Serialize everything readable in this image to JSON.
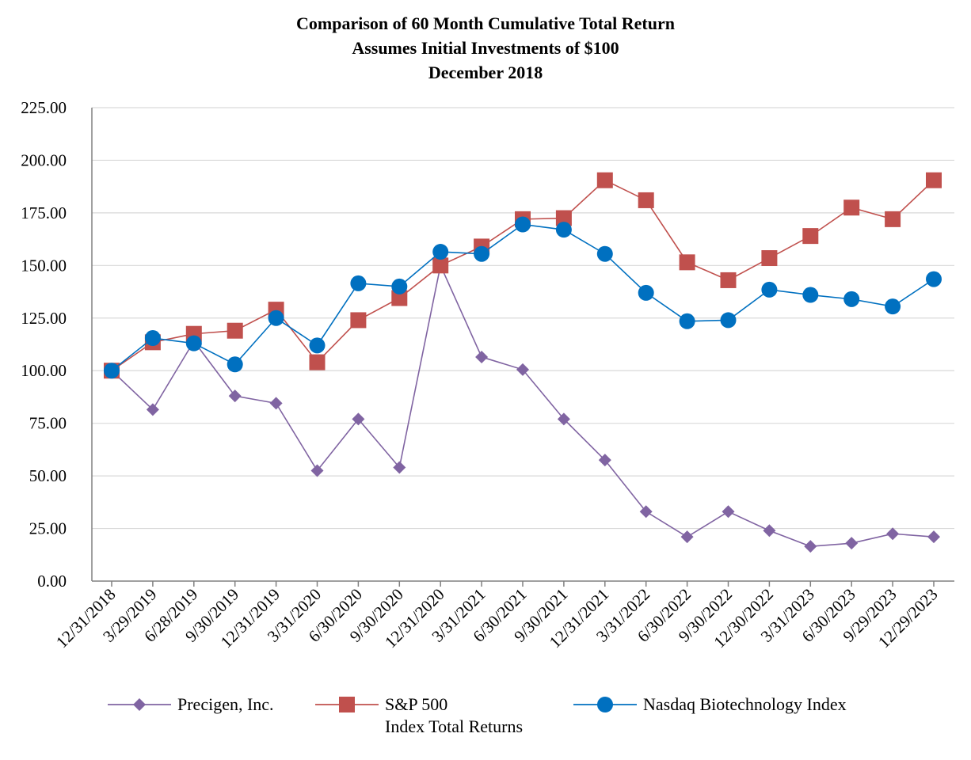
{
  "chart_data": {
    "type": "line",
    "title": "Comparison of 60 Month Cumulative Total Return",
    "subtitle_1": "Assumes Initial Investments of $100",
    "subtitle_2": "December 2018",
    "xlabel": "",
    "ylabel": "",
    "ylim": [
      0,
      225
    ],
    "yticks": [
      0,
      25,
      50,
      75,
      100,
      125,
      150,
      175,
      200,
      225
    ],
    "ytick_labels": [
      "0.00",
      "25.00",
      "50.00",
      "75.00",
      "100.00",
      "125.00",
      "150.00",
      "175.00",
      "200.00",
      "225.00"
    ],
    "grid": true,
    "legend_position": "bottom",
    "categories": [
      "12/31/2018",
      "3/29/2019",
      "6/28/2019",
      "9/30/2019",
      "12/31/2019",
      "3/31/2020",
      "6/30/2020",
      "9/30/2020",
      "12/31/2020",
      "3/31/2021",
      "6/30/2021",
      "9/30/2021",
      "12/31/2021",
      "3/31/2022",
      "6/30/2022",
      "9/30/2022",
      "12/30/2022",
      "3/31/2023",
      "6/30/2023",
      "9/29/2023",
      "12/29/2023"
    ],
    "series": [
      {
        "name": "Precigen, Inc.",
        "color": "#8064a2",
        "marker": "diamond",
        "values": [
          100,
          81.5,
          114,
          88,
          84.5,
          52.5,
          77,
          54,
          150,
          106.5,
          100.5,
          77,
          57.5,
          33,
          21,
          33,
          24,
          16.5,
          18,
          22.5,
          21
        ]
      },
      {
        "name": "S&P 500",
        "legend_line2": "Index Total Returns",
        "color": "#c0504d",
        "marker": "square",
        "values": [
          100,
          113.5,
          117.5,
          119,
          129,
          104,
          124,
          134.5,
          150,
          159,
          172,
          172.5,
          190.5,
          181,
          151.5,
          143,
          153.5,
          164,
          177.5,
          172,
          190.5
        ]
      },
      {
        "name": "Nasdaq Biotechnology Index",
        "color": "#0070c0",
        "marker": "circle",
        "values": [
          100,
          115.5,
          113,
          103,
          125,
          112,
          141.5,
          140,
          156.5,
          155.5,
          169.5,
          167,
          155.5,
          137,
          123.5,
          124,
          138.5,
          136,
          134,
          130.5,
          143.5
        ]
      }
    ]
  }
}
